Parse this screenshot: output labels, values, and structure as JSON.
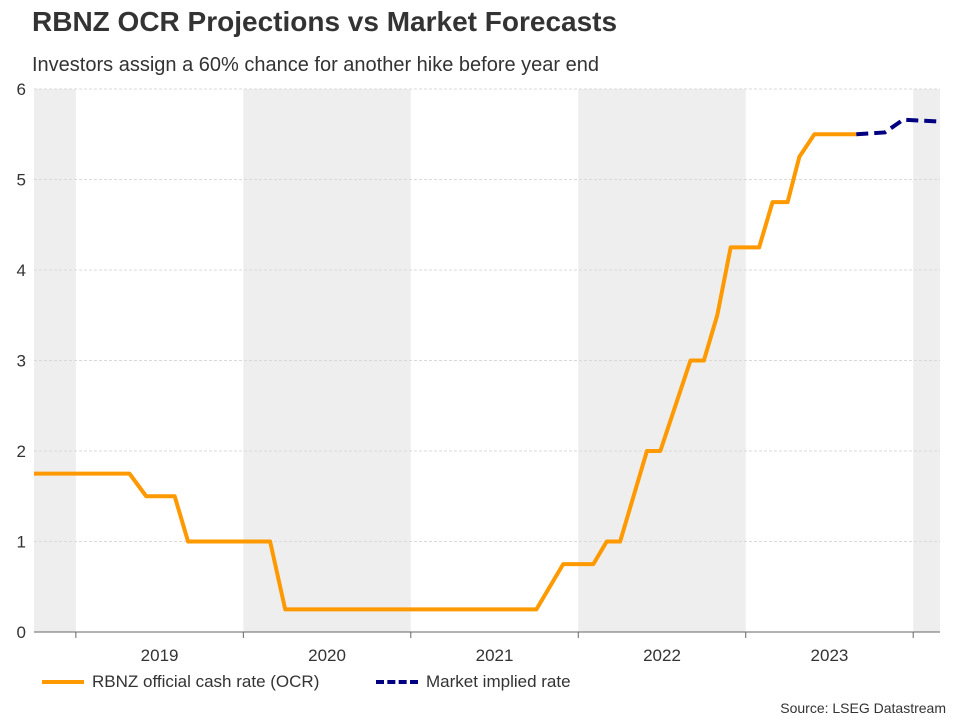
{
  "header": {
    "title": "RBNZ OCR Projections vs Market Forecasts",
    "subtitle": "Investors assign a 60% chance for another hike before year end"
  },
  "source": "Source: LSEG Datastream",
  "colors": {
    "ocr": "#ff9900",
    "market": "#000080",
    "band": "#eeeeee",
    "grid": "#d9d9d9"
  },
  "chart_data": {
    "type": "line",
    "title": "RBNZ OCR Projections vs Market Forecasts",
    "subtitle": "Investors assign a 60% chance for another hike before year end",
    "xlabel": "",
    "ylabel": "",
    "xlim": [
      2018.75,
      2024.16
    ],
    "ylim": [
      0,
      6
    ],
    "yticks": [
      0,
      1,
      2,
      3,
      4,
      5,
      6
    ],
    "xtick_labels": [
      "2019",
      "2020",
      "2021",
      "2022",
      "2023"
    ],
    "grid": true,
    "alternating_year_shading": true,
    "legend": "bottom-left",
    "series": [
      {
        "name": "RBNZ official cash rate (OCR)",
        "style": "solid",
        "x": [
          2018.75,
          2019.32,
          2019.42,
          2019.59,
          2019.67,
          2020.16,
          2020.25,
          2021.75,
          2021.91,
          2022.09,
          2022.17,
          2022.25,
          2022.41,
          2022.49,
          2022.58,
          2022.67,
          2022.75,
          2022.83,
          2022.91,
          2023.08,
          2023.16,
          2023.25,
          2023.32,
          2023.41,
          2023.66
        ],
        "y": [
          1.75,
          1.75,
          1.5,
          1.5,
          1.0,
          1.0,
          0.25,
          0.25,
          0.75,
          0.75,
          1.0,
          1.0,
          2.0,
          2.0,
          2.5,
          3.0,
          3.0,
          3.5,
          4.25,
          4.25,
          4.75,
          4.75,
          5.25,
          5.5,
          5.5
        ]
      },
      {
        "name": "Market implied rate",
        "style": "dashed",
        "x": [
          2023.66,
          2023.83,
          2023.94,
          2024.16
        ],
        "y": [
          5.5,
          5.52,
          5.66,
          5.64
        ]
      }
    ]
  }
}
